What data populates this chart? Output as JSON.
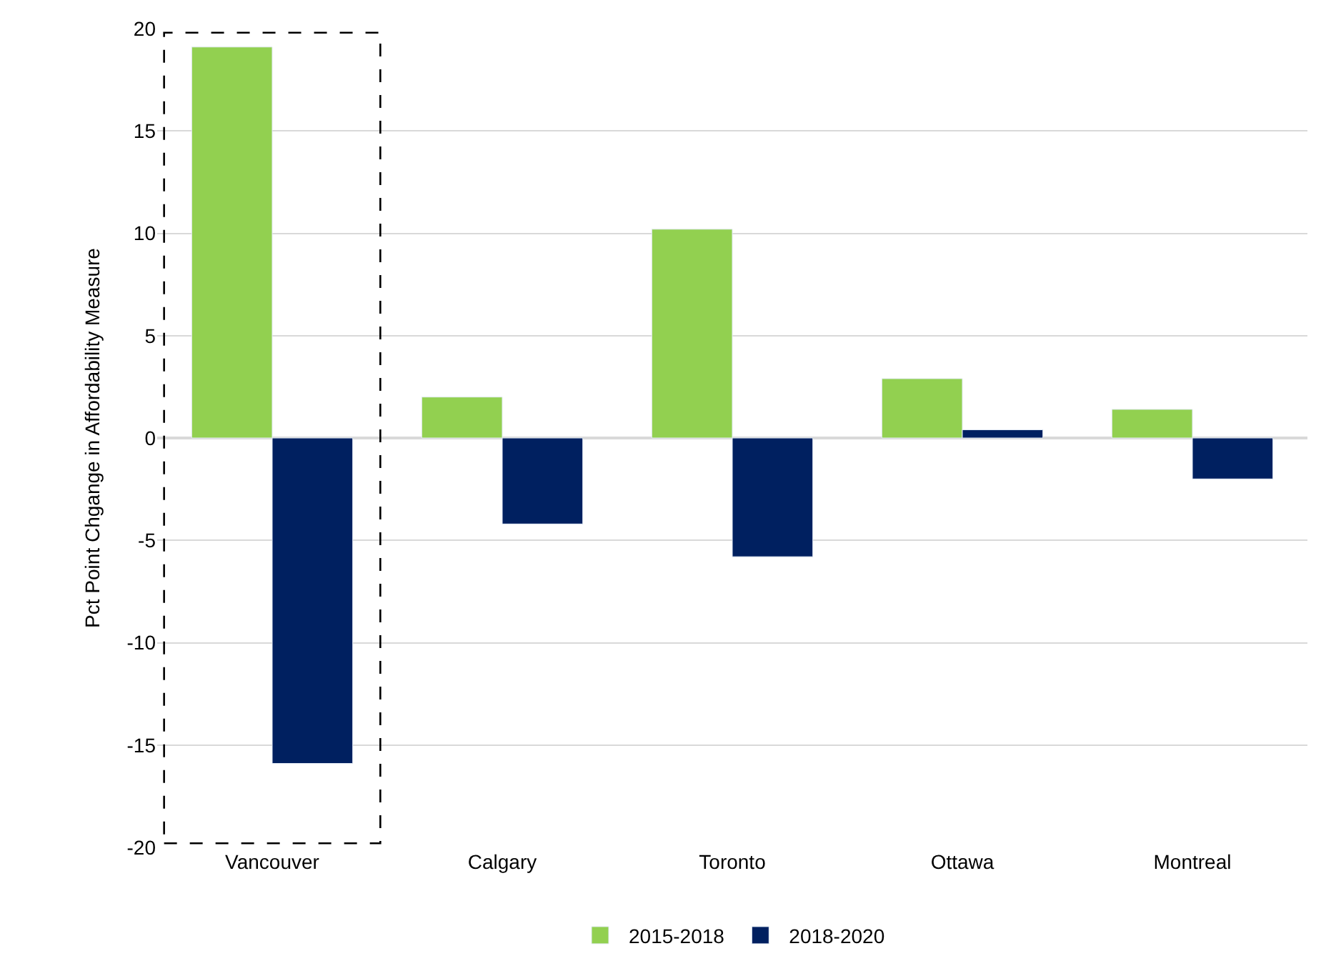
{
  "chart_data": {
    "type": "bar",
    "ylabel": "Pct Point Chgange in Affordability Measure",
    "categories": [
      "Vancouver",
      "Calgary",
      "Toronto",
      "Ottawa",
      "Montreal"
    ],
    "series": [
      {
        "name": "2015-2018",
        "color": "#92d050",
        "values": [
          19.1,
          2.0,
          10.2,
          2.9,
          1.4
        ]
      },
      {
        "name": "2018-2020",
        "color": "#002060",
        "values": [
          -15.9,
          -4.2,
          -5.8,
          0.4,
          -2.0
        ]
      }
    ],
    "ylim": [
      -20,
      20
    ],
    "yticks": [
      -20,
      -15,
      -10,
      -5,
      0,
      5,
      10,
      15,
      20
    ],
    "grid": "y",
    "legend": "bottom"
  }
}
